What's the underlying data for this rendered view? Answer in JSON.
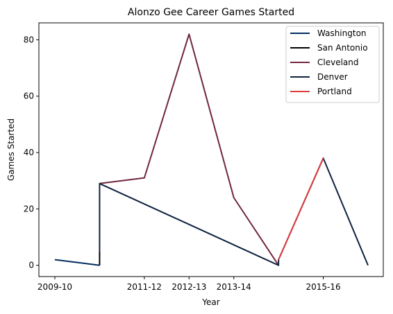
{
  "chart_data": {
    "type": "line",
    "title": "Alonzo Gee Career Games Started",
    "xlabel": "Year",
    "ylabel": "Games Started",
    "x_tick_labels": [
      "2009-10",
      "2011-12",
      "2012-13",
      "2013-14",
      "2015-16"
    ],
    "y_ticks": [
      0,
      20,
      40,
      60,
      80
    ],
    "ylim": [
      -4,
      86
    ],
    "legend_position": "top-right",
    "grid": false,
    "series": [
      {
        "name": "Washington",
        "color": "#002B5C",
        "points": [
          [
            "2009-10",
            2
          ],
          [
            "2010-11",
            0
          ]
        ]
      },
      {
        "name": "San Antonio",
        "color": "#000000",
        "points": [
          [
            "2010-11",
            0
          ],
          [
            "2010-11",
            5
          ]
        ]
      },
      {
        "name": "Cleveland",
        "color": "#6F263D",
        "points": [
          [
            "2010-11",
            29
          ],
          [
            "2011-12",
            31
          ],
          [
            "2012-13",
            82
          ],
          [
            "2013-14",
            24
          ],
          [
            "2014-15",
            0
          ]
        ]
      },
      {
        "name": "Denver",
        "color": "#0E2240",
        "points": [
          [
            "2010-11",
            5
          ],
          [
            "2010-11",
            29
          ],
          [
            "2014-15",
            0
          ],
          [
            "2014-15",
            2
          ],
          [
            "2015-16",
            38
          ],
          [
            "2016-17",
            0
          ]
        ]
      },
      {
        "name": "Portland",
        "color": "#E03A3E",
        "points": [
          [
            "2014-15",
            2
          ],
          [
            "2015-16",
            38
          ]
        ]
      }
    ]
  }
}
